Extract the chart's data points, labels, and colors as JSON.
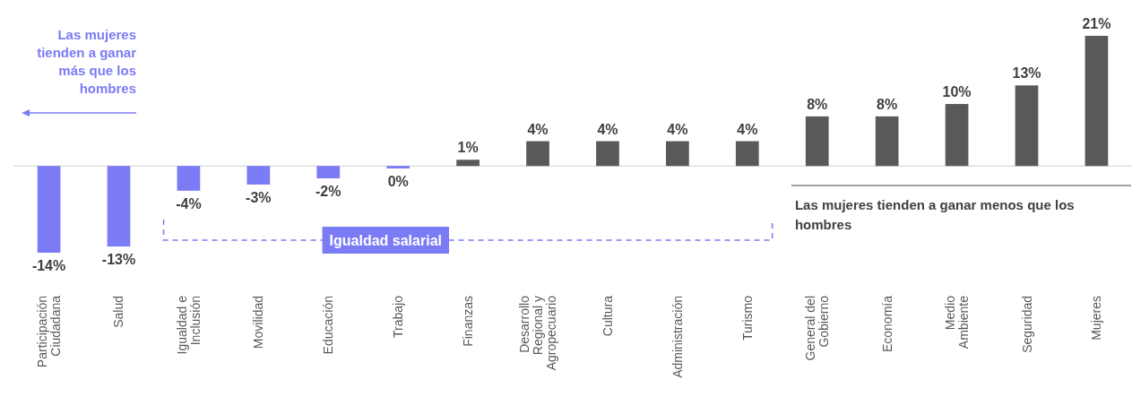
{
  "chart_data": {
    "type": "bar",
    "categories": [
      "Participación Ciudadana",
      "Salud",
      "Igualdad e Inclusión",
      "Movilidad",
      "Educación",
      "Trabajo",
      "Finanzas",
      "Desarrollo Regional y Agropecuario",
      "Cultura",
      "Administración",
      "Turismo",
      "General del Gobierno",
      "Economía",
      "Medio Ambiente",
      "Seguridad",
      "Mujeres"
    ],
    "values": [
      -14,
      -13,
      -4,
      -3,
      -2,
      -0.4,
      1,
      4,
      4,
      4,
      4,
      8,
      8,
      10,
      13,
      21
    ],
    "value_labels": [
      "-14%",
      "-13%",
      "-4%",
      "-3%",
      "-2%",
      "0%",
      "1%",
      "4%",
      "4%",
      "4%",
      "4%",
      "8%",
      "8%",
      "10%",
      "13%",
      "21%"
    ],
    "colors": [
      "#7b7bf5",
      "#7b7bf5",
      "#7b7bf5",
      "#7b7bf5",
      "#7b7bf5",
      "#7b7bf5",
      "#595959",
      "#595959",
      "#595959",
      "#595959",
      "#595959",
      "#595959",
      "#595959",
      "#595959",
      "#595959",
      "#595959"
    ],
    "annotations": [
      "Las mujeres tienden a ganar más que los hombres",
      "Igualdad salarial",
      "Las mujeres tienden a ganar menos que los hombres"
    ]
  }
}
